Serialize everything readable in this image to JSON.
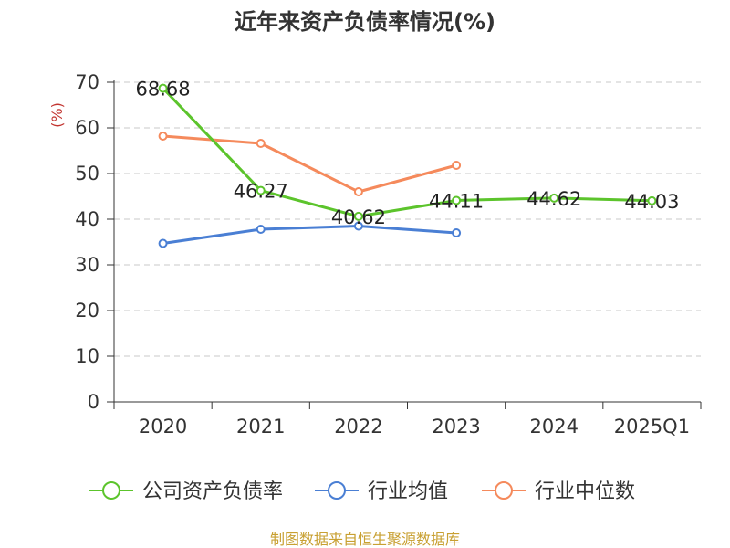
{
  "chart_data": {
    "type": "line",
    "title": "近年来资产负债率情况(%)",
    "ylabel": "(%)",
    "xlabel": "",
    "categories": [
      "2020",
      "2021",
      "2022",
      "2023",
      "2024",
      "2025Q1"
    ],
    "ylim": [
      0,
      70
    ],
    "yticks": [
      0,
      10,
      20,
      30,
      40,
      50,
      60,
      70
    ],
    "grid": true,
    "legend_position": "bottom",
    "series": [
      {
        "name": "公司资产负债率",
        "color": "#5cc42c",
        "values": [
          68.68,
          46.27,
          40.62,
          44.11,
          44.62,
          44.03
        ],
        "labels": [
          "68.68",
          "46.27",
          "40.62",
          "44.11",
          "44.62",
          "44.03"
        ]
      },
      {
        "name": "行业均值",
        "color": "#4a7fd4",
        "values": [
          34.7,
          37.8,
          38.5,
          37.0,
          null,
          null
        ]
      },
      {
        "name": "行业中位数",
        "color": "#f58a5c",
        "values": [
          58.2,
          56.6,
          46.0,
          51.8,
          null,
          null
        ]
      }
    ]
  },
  "footer": {
    "source": "制图数据来自恒生聚源数据库"
  }
}
